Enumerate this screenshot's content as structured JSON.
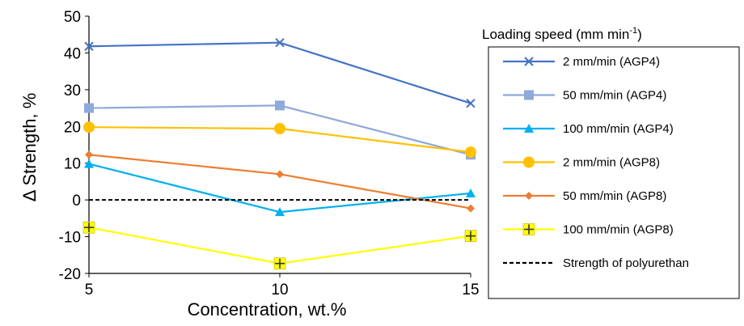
{
  "chart_data": {
    "type": "line",
    "x": [
      5,
      10,
      15
    ],
    "xlabel": "Concentration, wt.%",
    "ylabel": "Δ Strength, %",
    "xlim": [
      5,
      15
    ],
    "ylim": [
      -20,
      50
    ],
    "x_ticks": [
      "5",
      "10",
      "15"
    ],
    "y_ticks": [
      "-20",
      "-10",
      "0",
      "10",
      "20",
      "30",
      "40",
      "50"
    ],
    "grid": false,
    "legend": {
      "title_main": "Loading speed (mm min",
      "title_sup": "-1",
      "title_end": ")",
      "placement": "right"
    },
    "series": [
      {
        "name": "2 mm/min (AGP4)",
        "values": [
          41.8,
          42.8,
          26.3
        ],
        "color": "#4472C4",
        "marker": "x"
      },
      {
        "name": "50 mm/min (AGP4)",
        "values": [
          25.0,
          25.7,
          12.3
        ],
        "color": "#8EA9DB",
        "marker": "square"
      },
      {
        "name": "100 mm/min (AGP4)",
        "values": [
          9.8,
          -3.3,
          1.8
        ],
        "color": "#00B0F0",
        "marker": "triangle"
      },
      {
        "name": "2 mm/min (AGP8)",
        "values": [
          19.8,
          19.4,
          13.0
        ],
        "color": "#FFC000",
        "marker": "circle"
      },
      {
        "name": "50 mm/min (AGP8)",
        "values": [
          12.3,
          7.0,
          -2.3
        ],
        "color": "#ED7D31",
        "marker": "diamond"
      },
      {
        "name": "100 mm/min (AGP8)",
        "values": [
          -7.5,
          -17.3,
          -9.8
        ],
        "color": "#FFFF00",
        "marker": "plus"
      },
      {
        "name": "Strength of polyurethan",
        "values": [
          0,
          0,
          0
        ],
        "color": "#000000",
        "marker": "none",
        "dashed": true
      }
    ]
  }
}
